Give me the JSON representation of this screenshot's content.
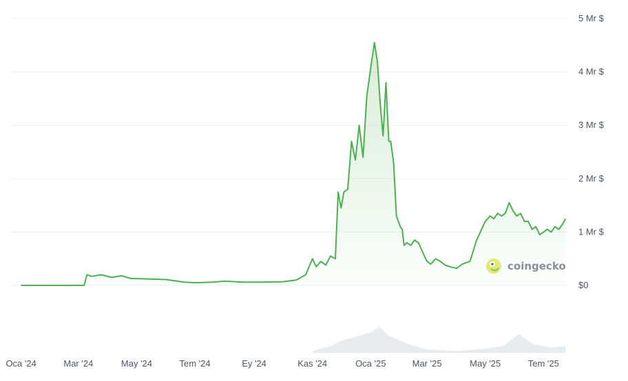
{
  "watermark": {
    "brand": "coingecko",
    "icon": "coingecko-logo-icon"
  },
  "chart_data": {
    "type": "area",
    "series": [
      {
        "color": "#4caf50",
        "x": [
          "2024-01-01",
          "2024-03-07",
          "2024-03-10",
          "2024-03-15",
          "2024-03-25",
          "2024-04-05",
          "2024-04-15",
          "2024-04-25",
          "2024-05-15",
          "2024-06-01",
          "2024-06-20",
          "2024-07-01",
          "2024-07-20",
          "2024-08-01",
          "2024-08-20",
          "2024-09-10",
          "2024-10-01",
          "2024-10-15",
          "2024-10-25",
          "2024-11-01",
          "2024-11-05",
          "2024-11-10",
          "2024-11-15",
          "2024-11-20",
          "2024-11-25",
          "2024-11-28",
          "2024-12-01",
          "2024-12-04",
          "2024-12-08",
          "2024-12-12",
          "2024-12-16",
          "2024-12-20",
          "2024-12-24",
          "2024-12-28",
          "2025-01-02",
          "2025-01-05",
          "2025-01-08",
          "2025-01-11",
          "2025-01-14",
          "2025-01-17",
          "2025-01-20",
          "2025-01-22",
          "2025-01-25",
          "2025-01-28",
          "2025-02-01",
          "2025-02-03",
          "2025-02-05",
          "2025-02-08",
          "2025-02-12",
          "2025-02-16",
          "2025-02-20",
          "2025-02-25",
          "2025-03-01",
          "2025-03-05",
          "2025-03-10",
          "2025-03-15",
          "2025-03-20",
          "2025-03-25",
          "2025-04-01",
          "2025-04-07",
          "2025-04-15",
          "2025-04-22",
          "2025-05-01",
          "2025-05-06",
          "2025-05-10",
          "2025-05-14",
          "2025-05-18",
          "2025-05-22",
          "2025-05-26",
          "2025-05-30",
          "2025-06-03",
          "2025-06-07",
          "2025-06-11",
          "2025-06-15",
          "2025-06-19",
          "2025-06-23",
          "2025-06-27",
          "2025-07-01",
          "2025-07-05",
          "2025-07-09",
          "2025-07-13",
          "2025-07-17",
          "2025-07-21",
          "2025-07-24"
        ],
        "y": [
          0.0,
          0.0,
          0.2,
          0.17,
          0.2,
          0.15,
          0.18,
          0.13,
          0.12,
          0.11,
          0.06,
          0.05,
          0.06,
          0.08,
          0.06,
          0.06,
          0.07,
          0.1,
          0.2,
          0.5,
          0.35,
          0.45,
          0.38,
          0.55,
          0.5,
          1.75,
          1.45,
          1.75,
          1.8,
          2.7,
          2.35,
          3.0,
          2.4,
          3.55,
          4.2,
          4.55,
          4.2,
          3.4,
          2.8,
          3.8,
          2.7,
          2.7,
          2.3,
          1.3,
          1.1,
          1.05,
          0.75,
          0.8,
          0.75,
          0.85,
          0.8,
          0.6,
          0.45,
          0.4,
          0.5,
          0.45,
          0.38,
          0.35,
          0.32,
          0.4,
          0.45,
          0.85,
          1.2,
          1.3,
          1.25,
          1.35,
          1.3,
          1.35,
          1.55,
          1.4,
          1.3,
          1.35,
          1.2,
          1.2,
          1.05,
          1.1,
          0.95,
          1.0,
          1.05,
          1.0,
          1.1,
          1.05,
          1.15,
          1.25
        ]
      }
    ],
    "volume_series": [
      {
        "color": "#e4e7eb",
        "x": [
          "2024-11-01",
          "2024-11-20",
          "2024-12-01",
          "2024-12-15",
          "2025-01-01",
          "2025-01-10",
          "2025-01-20",
          "2025-02-01",
          "2025-02-15",
          "2025-03-01",
          "2025-04-01",
          "2025-05-01",
          "2025-05-20",
          "2025-06-05",
          "2025-06-20",
          "2025-07-10",
          "2025-07-24"
        ],
        "y": [
          0.05,
          0.2,
          0.35,
          0.45,
          0.6,
          0.75,
          0.5,
          0.35,
          0.2,
          0.1,
          0.05,
          0.12,
          0.2,
          0.55,
          0.25,
          0.15,
          0.2
        ]
      }
    ],
    "ylim": [
      0,
      5
    ],
    "yticks": [
      0,
      1,
      2,
      3,
      4,
      5
    ],
    "ytick_labels": [
      "$0",
      "1 Mr $",
      "2 Mr $",
      "3 Mr $",
      "4 Mr $",
      "5 Mr $"
    ],
    "xlim": [
      "2023-12-20",
      "2025-07-26"
    ],
    "xticks": [
      "2024-01-01",
      "2024-03-01",
      "2024-05-01",
      "2024-07-01",
      "2024-09-01",
      "2024-11-01",
      "2025-01-01",
      "2025-03-01",
      "2025-05-01",
      "2025-07-01"
    ],
    "xtick_labels": [
      "Oca '24",
      "Mar '24",
      "May '24",
      "Tem '24",
      "Ey '24",
      "Kas '24",
      "Oca '25",
      "Mar '25",
      "May '25",
      "Tem '25"
    ],
    "grid": true,
    "legend": "none",
    "xlabel": "",
    "ylabel": "",
    "title": ""
  }
}
